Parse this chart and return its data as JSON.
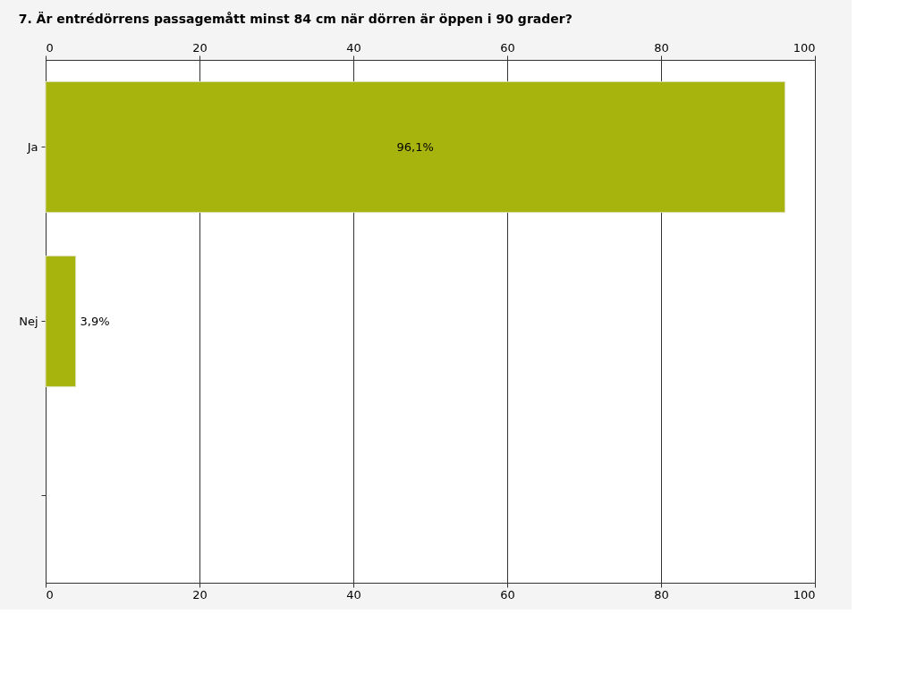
{
  "chart_data": {
    "type": "bar",
    "orientation": "horizontal",
    "title": "7. Är entrédörrens passagemått minst 84 cm när dörren är öppen i 90 grader?",
    "categories": [
      "Ja",
      "Nej",
      null
    ],
    "values": [
      96.1,
      3.9,
      null
    ],
    "value_labels": [
      "96,1%",
      "3,9%",
      null
    ],
    "color": "#a8b40e",
    "xlim": [
      0,
      100
    ],
    "xticks": [
      0,
      20,
      40,
      60,
      80,
      100
    ],
    "x2lim": [
      0,
      100
    ],
    "x2ticks": [
      0,
      20,
      40,
      60,
      80,
      100
    ],
    "grid": "x"
  }
}
